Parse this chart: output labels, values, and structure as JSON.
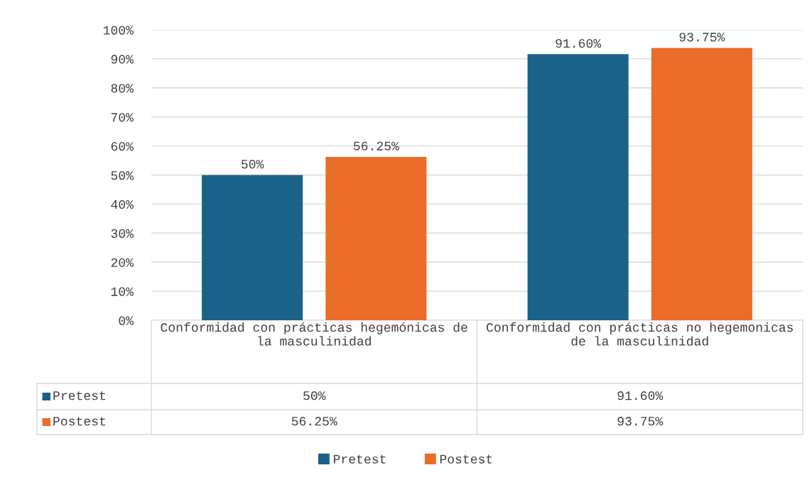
{
  "chart_data": {
    "type": "bar",
    "categories": [
      "Conformidad con prácticas hegemónicas de la masculinidad",
      "Conformidad con prácticas no hegemonicas de la masculinidad"
    ],
    "series": [
      {
        "name": "Pretest",
        "color": "#1b6289",
        "values": [
          50,
          91.6
        ],
        "value_labels": [
          "50%",
          "91.60%"
        ]
      },
      {
        "name": "Postest",
        "color": "#ec6d2a",
        "values": [
          56.25,
          93.75
        ],
        "value_labels": [
          "56.25%",
          "93.75%"
        ]
      }
    ],
    "ylim": [
      0,
      100
    ],
    "yticks": [
      {
        "value": 0,
        "label": "0%"
      },
      {
        "value": 10,
        "label": "10%"
      },
      {
        "value": 20,
        "label": "20%"
      },
      {
        "value": 30,
        "label": "30%"
      },
      {
        "value": 40,
        "label": "40%"
      },
      {
        "value": 50,
        "label": "50%"
      },
      {
        "value": 60,
        "label": "60%"
      },
      {
        "value": 70,
        "label": "70%"
      },
      {
        "value": 80,
        "label": "80%"
      },
      {
        "value": 90,
        "label": "90%"
      },
      {
        "value": 100,
        "label": "100%"
      }
    ],
    "grid": "y",
    "legend": "bottom"
  }
}
